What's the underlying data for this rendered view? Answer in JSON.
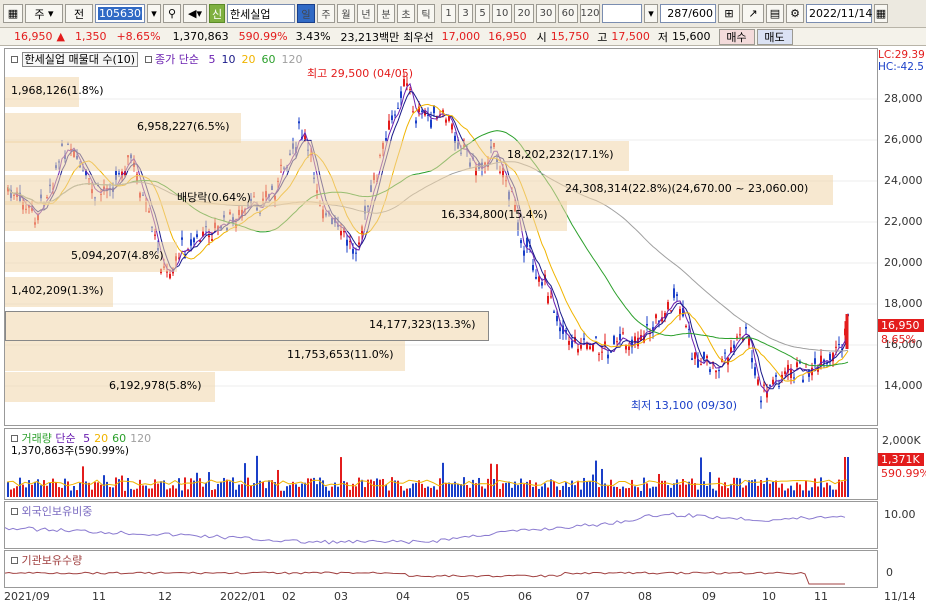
{
  "toolbar": {
    "market": "주",
    "market2": "전",
    "code": "105630",
    "badge": "신",
    "stock_name": "한세실업",
    "periods": [
      "일",
      "주",
      "월",
      "년",
      "분",
      "초",
      "틱"
    ],
    "active_period": "일",
    "intervals": [
      "1",
      "3",
      "5",
      "10",
      "20",
      "30",
      "60",
      "120"
    ],
    "count": "287",
    "count_total": "/600",
    "date": "2022/11/14"
  },
  "quote": {
    "price": "16,950",
    "change": "1,350",
    "rate": "+8.65%",
    "volume": "1,370,863",
    "vol_rate": "590.99%",
    "turnover": "3.43%",
    "amount": "23,213백만",
    "best_label": "최우선",
    "best1": "17,000",
    "best2": "16,950",
    "open_label": "시",
    "open": "15,750",
    "high_label": "고",
    "high": "17,500",
    "low_label": "저",
    "low": "15,600",
    "buy": "매수",
    "sell": "매도"
  },
  "price_chart": {
    "title": "한세실업 매물대 수(10)",
    "ma_title": "종가 단순",
    "ma_periods": [
      "5",
      "10",
      "20",
      "60",
      "120"
    ],
    "ma_colors": [
      "#6a1fb0",
      "#1a1a8a",
      "#f0b400",
      "#2ca02c",
      "#a0a0a0"
    ],
    "max_label": "최고 29,500 (04/05)",
    "min_label": "최저 13,100 (09/30)",
    "dividend_label": "배당락(0.64%)",
    "hc": "HC:-42.5",
    "lc": "LC:29.39",
    "current_price": "16,950",
    "current_rate": "8.65%",
    "y_ticks": [
      "28,000",
      "26,000",
      "24,000",
      "22,000",
      "20,000",
      "18,000",
      "16,000",
      "14,000"
    ]
  },
  "volume_profile": [
    {
      "text": "1,968,126(1.8%)"
    },
    {
      "text": "6,958,227(6.5%)"
    },
    {
      "text": "18,202,232(17.1%)"
    },
    {
      "text": "24,308,314(22.8%)(24,670.00 ~ 23,060.00)"
    },
    {
      "text": "16,334,800(15.4%)"
    },
    {
      "text": "5,094,207(4.8%)"
    },
    {
      "text": "1,402,209(1.3%)"
    },
    {
      "text": "14,177,323(13.3%)"
    },
    {
      "text": "11,753,653(11.0%)"
    },
    {
      "text": "6,192,978(5.8%)"
    }
  ],
  "volume_chart": {
    "title": "거래량",
    "ma_title": "단순",
    "ma_periods": [
      "5",
      "20",
      "60",
      "120"
    ],
    "last_value": "1,370,863주(590.99%)",
    "y_tick": "2,000K",
    "current": "1,371K",
    "current_rate": "590.99%"
  },
  "foreign_chart": {
    "title": "외국인보유비중",
    "y_tick": "10.00"
  },
  "inst_chart": {
    "title": "기관보유수량",
    "y_tick": "0"
  },
  "x_axis": [
    "2021/09",
    "11",
    "12",
    "2022/01",
    "02",
    "03",
    "04",
    "05",
    "06",
    "07",
    "08",
    "09",
    "10",
    "11",
    "11/14"
  ]
}
